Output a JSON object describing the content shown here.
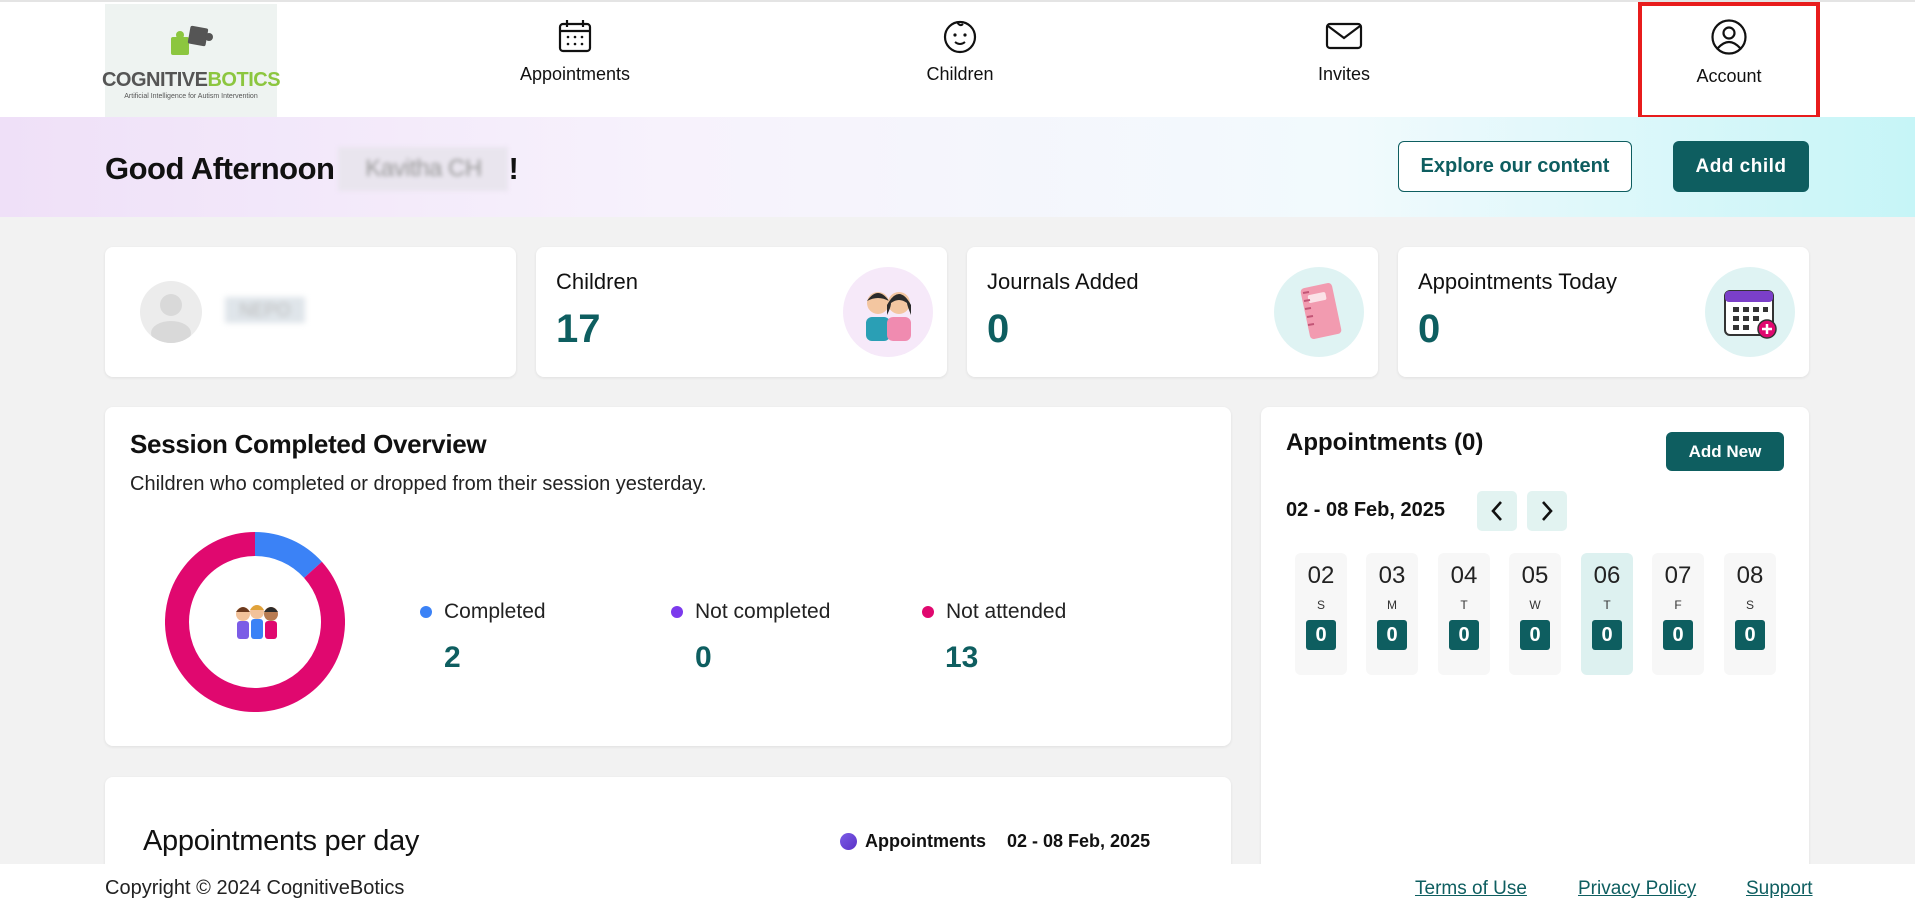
{
  "brand": {
    "logo_word_a": "COGNITIVE",
    "logo_word_b": "BOTICS",
    "logo_tagline": "Artificial Intelligence for Autism Intervention"
  },
  "nav": {
    "appointments": "Appointments",
    "children": "Children",
    "invites": "Invites",
    "account": "Account"
  },
  "greeting": {
    "text": "Good Afternoon",
    "name_redacted": "Kavitha CH",
    "suffix": "!"
  },
  "header_buttons": {
    "explore": "Explore our content",
    "add_child": "Add child"
  },
  "profile": {
    "name_redacted": "NEPO"
  },
  "stats": [
    {
      "label": "Children",
      "value": "17"
    },
    {
      "label": "Journals Added",
      "value": "0"
    },
    {
      "label": "Appointments Today",
      "value": "0"
    }
  ],
  "session": {
    "title": "Session Completed Overview",
    "subtitle": "Children who completed or dropped from their session yesterday.",
    "legend": [
      {
        "label": "Completed",
        "value": "2",
        "color": "#3b82f6"
      },
      {
        "label": "Not completed",
        "value": "0",
        "color": "#7c3aed"
      },
      {
        "label": "Not attended",
        "value": "13",
        "color": "#e0086f"
      }
    ]
  },
  "chart_data": {
    "type": "pie",
    "categories": [
      "Completed",
      "Not completed",
      "Not attended"
    ],
    "values": [
      2,
      0,
      13
    ],
    "colors": [
      "#3b82f6",
      "#7c3aed",
      "#e0086f"
    ]
  },
  "appointments_panel": {
    "title": "Appointments (0)",
    "add_new": "Add New",
    "range": "02 - 08 Feb, 2025",
    "days": [
      {
        "num": "02",
        "wk": "S",
        "count": "0"
      },
      {
        "num": "03",
        "wk": "M",
        "count": "0"
      },
      {
        "num": "04",
        "wk": "T",
        "count": "0"
      },
      {
        "num": "05",
        "wk": "W",
        "count": "0"
      },
      {
        "num": "06",
        "wk": "T",
        "count": "0",
        "selected": true
      },
      {
        "num": "07",
        "wk": "F",
        "count": "0"
      },
      {
        "num": "08",
        "wk": "S",
        "count": "0"
      }
    ]
  },
  "per_day": {
    "title": "Appointments per day",
    "legend": "Appointments",
    "range": "02 - 08 Feb, 2025"
  },
  "footer": {
    "copyright": "Copyright © 2024 CognitiveBotics",
    "terms": "Terms of Use",
    "privacy": "Privacy Policy",
    "support": "Support"
  },
  "colors": {
    "accent": "#0e5e60",
    "highlight": "#e81c1c"
  }
}
